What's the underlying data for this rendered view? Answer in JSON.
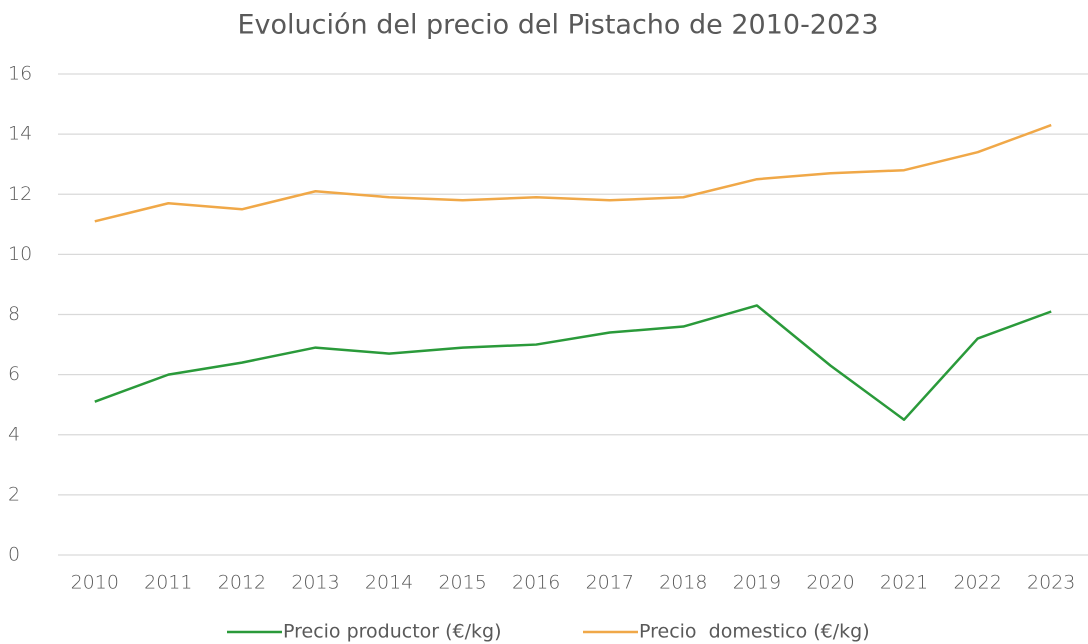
{
  "chart_data": {
    "type": "line",
    "title": "Evolución del precio del Pistacho de 2010-2023",
    "categories": [
      "2010",
      "2011",
      "2012",
      "2013",
      "2014",
      "2015",
      "2016",
      "2017",
      "2018",
      "2019",
      "2020",
      "2021",
      "2022",
      "2023"
    ],
    "series": [
      {
        "name": "Precio productor (€/kg)",
        "color": "#2a9a3a",
        "values": [
          5.1,
          6.0,
          6.4,
          6.9,
          6.7,
          6.9,
          7.0,
          7.4,
          7.6,
          8.3,
          6.3,
          4.5,
          7.2,
          8.1
        ]
      },
      {
        "name": "Precio  domestico (€/kg)",
        "color": "#f0a848",
        "values": [
          11.1,
          11.7,
          11.5,
          12.1,
          11.9,
          11.8,
          11.9,
          11.8,
          11.9,
          12.5,
          12.7,
          12.8,
          13.4,
          14.3
        ]
      }
    ],
    "ylim": [
      0,
      16
    ],
    "yticks": [
      0,
      2,
      4,
      6,
      8,
      10,
      12,
      14,
      16
    ],
    "grid": true,
    "legend": "bottom"
  }
}
